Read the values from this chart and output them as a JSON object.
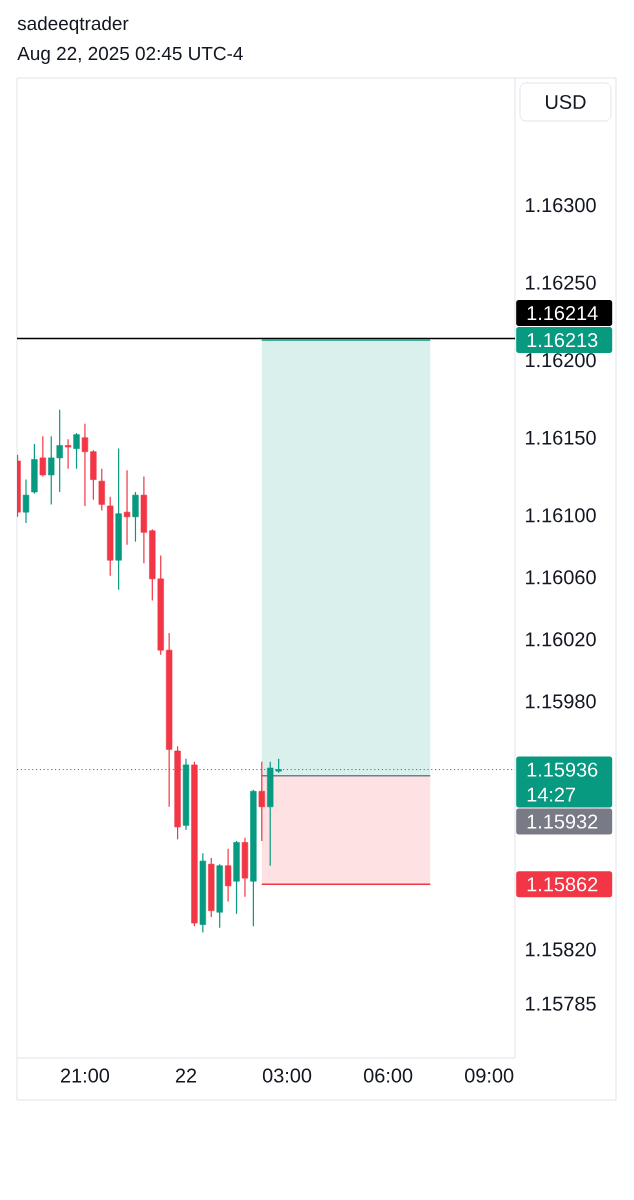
{
  "chart_data": {
    "type": "candlestick",
    "title": "sadeeqtrader",
    "subtitle": "Aug 22, 2025 02:45 UTC-4",
    "x": [
      "2025-08-21T19:00",
      "2025-08-21T19:15",
      "2025-08-21T19:30",
      "2025-08-21T19:45",
      "2025-08-21T20:00",
      "2025-08-21T20:15",
      "2025-08-21T20:30",
      "2025-08-21T20:45",
      "2025-08-21T21:00",
      "2025-08-21T21:15",
      "2025-08-21T21:30",
      "2025-08-21T21:45",
      "2025-08-21T22:00",
      "2025-08-21T22:15",
      "2025-08-21T22:30",
      "2025-08-21T22:45",
      "2025-08-21T23:00",
      "2025-08-21T23:15",
      "2025-08-21T23:30",
      "2025-08-21T23:45",
      "2025-08-22T00:00",
      "2025-08-22T00:15",
      "2025-08-22T00:30",
      "2025-08-22T00:45",
      "2025-08-22T01:00",
      "2025-08-22T01:15",
      "2025-08-22T01:30",
      "2025-08-22T01:45",
      "2025-08-22T02:00",
      "2025-08-22T02:15",
      "2025-08-22T02:30",
      "2025-08-22T02:45"
    ],
    "ohlc": [
      [
        1.16135,
        1.16139,
        1.16099,
        1.16102
      ],
      [
        1.16102,
        1.16123,
        1.16095,
        1.16113
      ],
      [
        1.16115,
        1.16146,
        1.16114,
        1.16136
      ],
      [
        1.16137,
        1.16151,
        1.16125,
        1.16126
      ],
      [
        1.16126,
        1.16151,
        1.16107,
        1.16137
      ],
      [
        1.16137,
        1.16168,
        1.16115,
        1.16145
      ],
      [
        1.16145,
        1.16149,
        1.1613,
        1.16144
      ],
      [
        1.16143,
        1.16153,
        1.1613,
        1.16152
      ],
      [
        1.1615,
        1.16159,
        1.16106,
        1.16141
      ],
      [
        1.16141,
        1.16142,
        1.1611,
        1.16123
      ],
      [
        1.16122,
        1.1613,
        1.16103,
        1.16107
      ],
      [
        1.16106,
        1.16112,
        1.16061,
        1.16071
      ],
      [
        1.16071,
        1.16143,
        1.16052,
        1.16101
      ],
      [
        1.16102,
        1.16129,
        1.16081,
        1.16099
      ],
      [
        1.16099,
        1.16115,
        1.16083,
        1.16113
      ],
      [
        1.16113,
        1.16125,
        1.16069,
        1.16089
      ],
      [
        1.1609,
        1.16091,
        1.16045,
        1.16059
      ],
      [
        1.16059,
        1.16074,
        1.1601,
        1.16013
      ],
      [
        1.16013,
        1.16024,
        1.15912,
        1.15949
      ],
      [
        1.15948,
        1.15951,
        1.15891,
        1.15899
      ],
      [
        1.159,
        1.15943,
        1.15897,
        1.15939
      ],
      [
        1.15939,
        1.15941,
        1.15835,
        1.15837
      ],
      [
        1.15836,
        1.15882,
        1.15831,
        1.15877
      ],
      [
        1.15875,
        1.15879,
        1.15841,
        1.15845
      ],
      [
        1.15844,
        1.15875,
        1.15834,
        1.15874
      ],
      [
        1.15874,
        1.15885,
        1.15851,
        1.15861
      ],
      [
        1.15864,
        1.1589,
        1.15843,
        1.15889
      ],
      [
        1.15889,
        1.15892,
        1.15854,
        1.15866
      ],
      [
        1.15864,
        1.15923,
        1.15835,
        1.15922
      ],
      [
        1.15922,
        1.15941,
        1.1589,
        1.15912
      ],
      [
        1.15912,
        1.15941,
        1.15874,
        1.15937
      ],
      [
        1.15935,
        1.15943,
        1.15934,
        1.15936
      ]
    ],
    "colors": [
      "#f23645",
      "#089981",
      "#089981",
      "#f23645",
      "#089981",
      "#089981",
      "#f23645",
      "#089981",
      "#f23645",
      "#f23645",
      "#f23645",
      "#f23645",
      "#089981",
      "#f23645",
      "#089981",
      "#f23645",
      "#f23645",
      "#f23645",
      "#f23645",
      "#f23645",
      "#089981",
      "#f23645",
      "#089981",
      "#f23645",
      "#089981",
      "#f23645",
      "#089981",
      "#f23645",
      "#089981",
      "#f23645",
      "#089981",
      "#089981"
    ],
    "series": [
      {
        "type": "line",
        "x": [
          "2025-08-22T02:15",
          "2025-08-22T07:15"
        ],
        "values": [
          1.16213,
          1.16213
        ],
        "upper": [
          1.16213,
          1.16213
        ],
        "lower": [
          1.15932,
          1.15932
        ],
        "color": "#089981"
      },
      {
        "type": "line",
        "x": [
          "2025-08-22T02:15",
          "2025-08-22T07:15"
        ],
        "values": [
          1.15932,
          1.15932
        ],
        "color": "#787b86"
      },
      {
        "type": "line",
        "x": [
          "2025-08-22T02:15",
          "2025-08-22T07:15"
        ],
        "values": [
          1.15862,
          1.15862
        ],
        "upper": [
          1.15932,
          1.15932
        ],
        "lower": [
          1.15862,
          1.15862
        ],
        "color": "#f23645"
      }
    ],
    "xlim": [
      "2025-08-21T18:59",
      "2025-08-22T09:46"
    ],
    "ylim": [
      1.1575,
      1.16382
    ],
    "xticks": [
      {
        "value": "2025-08-21T21:00",
        "label": "21:00"
      },
      {
        "value": "2025-08-22",
        "label": "22"
      },
      {
        "value": "2025-08-22T03:00",
        "label": "03:00"
      },
      {
        "value": "2025-08-22T06:00",
        "label": "06:00"
      },
      {
        "value": "2025-08-22T09:00",
        "label": "09:00"
      }
    ],
    "yticks": [
      {
        "value": 1.163,
        "label": "1.16300"
      },
      {
        "value": 1.1625,
        "label": "1.16250"
      },
      {
        "value": 1.162,
        "label": "1.16200"
      },
      {
        "value": 1.1615,
        "label": "1.16150"
      },
      {
        "value": 1.161,
        "label": "1.16100"
      },
      {
        "value": 1.1606,
        "label": "1.16060"
      },
      {
        "value": 1.1602,
        "label": "1.16020"
      },
      {
        "value": 1.1598,
        "label": "1.15980"
      },
      {
        "value": 1.1582,
        "label": "1.15820"
      },
      1.15785
    ],
    "ref_lines": [
      {
        "axis": "y",
        "value": 1.15936,
        "label": "1.15936",
        "color": "#089981",
        "line_style": "dotted"
      },
      {
        "axis": "y",
        "value": 1.16214,
        "label": "1.16214",
        "color": "#000000",
        "line_style": "solid"
      }
    ],
    "annotations": [
      "USD",
      "14:27",
      "1.16213",
      "1.15932",
      "1.15862"
    ]
  }
}
